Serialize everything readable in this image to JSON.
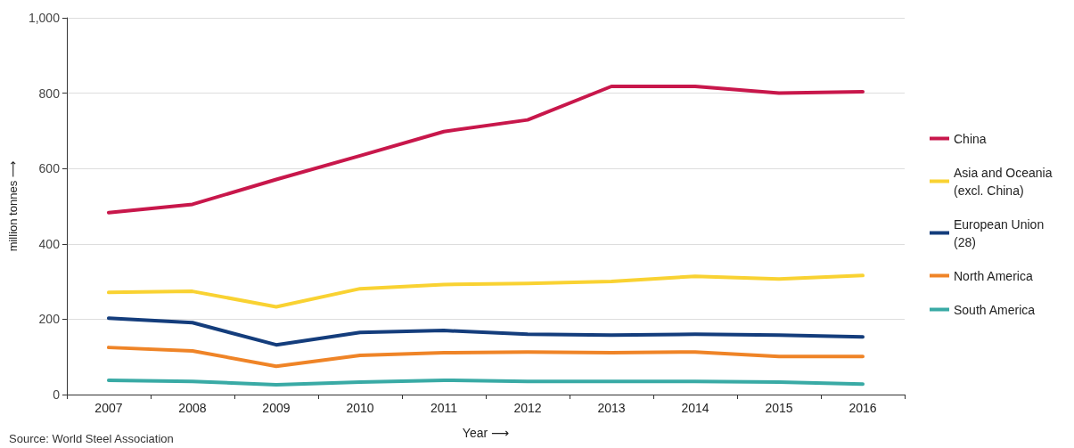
{
  "chart_data": {
    "type": "line",
    "xlabel": "Year ⟶",
    "ylabel": "million tonnes ⟶",
    "categories": [
      "2007",
      "2008",
      "2009",
      "2010",
      "2011",
      "2012",
      "2013",
      "2014",
      "2015",
      "2016"
    ],
    "series": [
      {
        "name": "China",
        "color": "#c8174b",
        "values": [
          483,
          505,
          571,
          634,
          698,
          729,
          818,
          818,
          800,
          804
        ]
      },
      {
        "name": "Asia and Oceania (excl. China)",
        "color": "#f9d232",
        "values": [
          271,
          274,
          233,
          281,
          292,
          295,
          300,
          314,
          307,
          316
        ]
      },
      {
        "name": "European Union (28)",
        "color": "#143d7c",
        "values": [
          203,
          191,
          132,
          165,
          170,
          160,
          158,
          160,
          158,
          153
        ]
      },
      {
        "name": "North America",
        "color": "#ef8427",
        "values": [
          125,
          116,
          75,
          104,
          111,
          113,
          111,
          113,
          101,
          101
        ]
      },
      {
        "name": "South America",
        "color": "#39aaa5",
        "values": [
          38,
          35,
          26,
          33,
          38,
          35,
          35,
          35,
          33,
          28
        ]
      }
    ],
    "ylim": [
      0,
      1000
    ],
    "yticks": [
      0,
      200,
      400,
      600,
      800,
      {
        "value": 1000,
        "label": "1,000"
      }
    ],
    "grid": "y",
    "legend": "right",
    "marker": "none",
    "line_style": "solid",
    "annotations": [
      "Source: World Steel Association"
    ]
  }
}
